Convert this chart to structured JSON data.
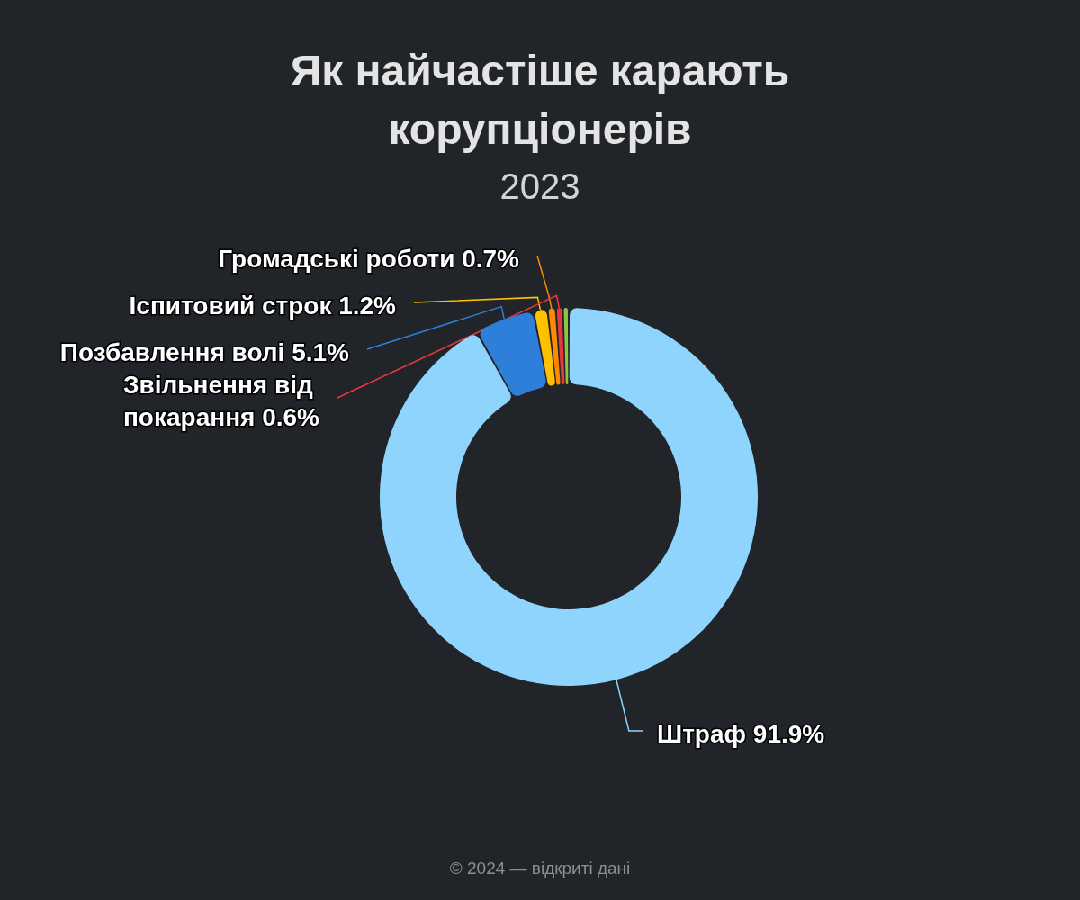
{
  "chart_data": {
    "type": "donut",
    "title": "Як найчастіше карають корупціонерів",
    "subtitle": "2023",
    "categories": [
      "Штраф",
      "Позбавлення волі",
      "Іспитовий строк",
      "Громадські роботи",
      "Звільнення від покарання",
      null
    ],
    "values": [
      91.9,
      5.1,
      1.2,
      0.7,
      0.6,
      0.5
    ],
    "colors": [
      "#8fd4fd",
      "#2e7fd9",
      "#ffc000",
      "#ff8a00",
      "#e8383f",
      "#8dc63f"
    ],
    "value_labels": [
      "91.9%",
      "5.1%",
      "1.2%",
      "0.7%",
      "0.6%",
      null
    ],
    "annotations": [
      "© 2024 — відкриті дані"
    ]
  }
}
